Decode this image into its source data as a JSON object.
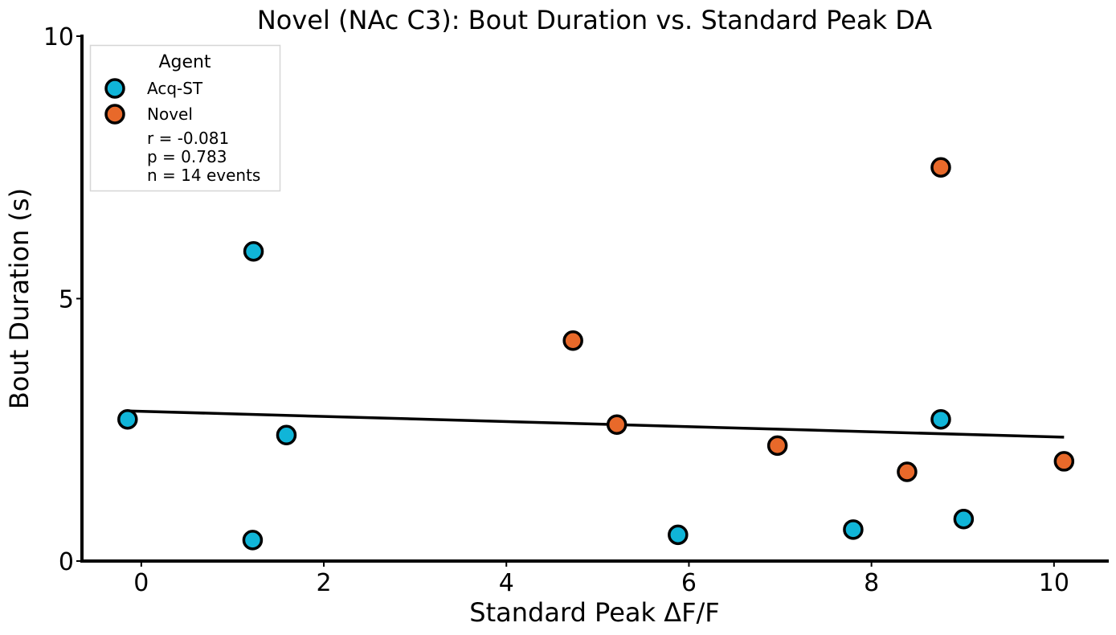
{
  "chart_data": {
    "type": "scatter",
    "title": "Novel (NAc C3): Bout Duration vs. Standard Peak DA",
    "xlabel": "Standard Peak ΔF/F",
    "ylabel": "Bout Duration (s)",
    "xlim": [
      -0.65,
      10.6
    ],
    "ylim": [
      0,
      10
    ],
    "xticks": [
      0,
      2,
      4,
      6,
      8,
      10
    ],
    "yticks": [
      0,
      5,
      10
    ],
    "grid": false,
    "legend": {
      "title": "Agent",
      "placement": "top-left",
      "entries": [
        "Acq-ST",
        "Novel"
      ],
      "stats": [
        "r = -0.081",
        "p = 0.783",
        "n = 14 events"
      ]
    },
    "series": [
      {
        "name": "Acq-ST",
        "color": "#10b5d8",
        "points": [
          {
            "x": -0.15,
            "y": 2.7
          },
          {
            "x": 1.23,
            "y": 5.9
          },
          {
            "x": 1.22,
            "y": 0.4
          },
          {
            "x": 1.59,
            "y": 2.4
          },
          {
            "x": 5.88,
            "y": 0.5
          },
          {
            "x": 7.8,
            "y": 0.6
          },
          {
            "x": 8.76,
            "y": 2.7
          },
          {
            "x": 9.01,
            "y": 0.8
          }
        ]
      },
      {
        "name": "Novel",
        "color": "#e8692a",
        "points": [
          {
            "x": 4.73,
            "y": 4.2
          },
          {
            "x": 5.21,
            "y": 2.6
          },
          {
            "x": 6.97,
            "y": 2.2
          },
          {
            "x": 8.39,
            "y": 1.7
          },
          {
            "x": 8.76,
            "y": 7.5
          },
          {
            "x": 10.11,
            "y": 1.9
          }
        ]
      }
    ],
    "fit_line": {
      "x": [
        -0.15,
        10.11
      ],
      "y": [
        2.86,
        2.36
      ],
      "color": "#000000"
    }
  }
}
